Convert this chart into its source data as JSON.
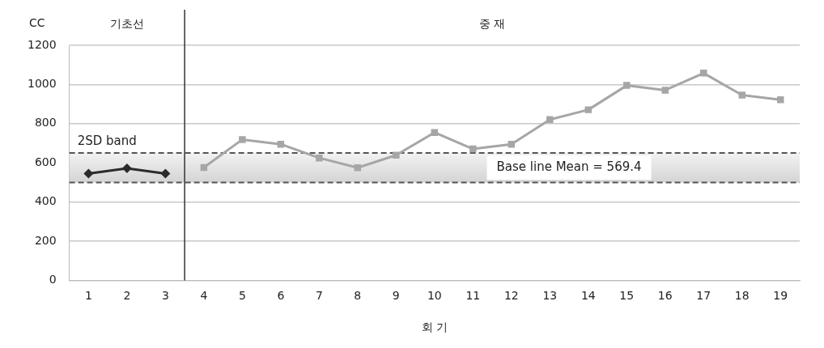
{
  "chart_data": {
    "type": "line",
    "xlabel": "회 기",
    "ylabel": "CC",
    "xlim": [
      0.5,
      19.5
    ],
    "xticks": [
      1,
      2,
      3,
      4,
      5,
      6,
      7,
      8,
      9,
      10,
      11,
      12,
      13,
      14,
      15,
      16,
      17,
      18,
      19
    ],
    "ylim": [
      0,
      1200
    ],
    "yticks": [
      0,
      200,
      400,
      600,
      800,
      1000,
      1200
    ],
    "grid": "y",
    "legend": false,
    "series": [
      {
        "x": [
          1,
          2,
          3
        ],
        "values": [
          545,
          572,
          545
        ],
        "color": "#2b2b2b",
        "marker": "diamond"
      },
      {
        "x": [
          4,
          5,
          6,
          7,
          8,
          9,
          10,
          11,
          12,
          13,
          14,
          15,
          16,
          17,
          18,
          19
        ],
        "values": [
          576,
          719,
          695,
          625,
          575,
          639,
          755,
          671,
          695,
          821,
          871,
          995,
          971,
          1058,
          946,
          922
        ],
        "color": "#a6a6a6",
        "marker": "square"
      }
    ],
    "bands": [
      {
        "axis": "y",
        "from": 500,
        "to": 650,
        "label": "2SD band",
        "color": "#d4d4d4"
      }
    ],
    "ref_lines": [
      {
        "axis": "x",
        "value": 3.5,
        "color": "#333333"
      },
      {
        "axis": "y",
        "value": 650,
        "color": "#555555",
        "line_style": "dashed"
      },
      {
        "axis": "y",
        "value": 500,
        "color": "#555555",
        "line_style": "dashed"
      }
    ],
    "annotations": [
      "기초선",
      "중 재",
      "Base line Mean = 569.4"
    ]
  }
}
